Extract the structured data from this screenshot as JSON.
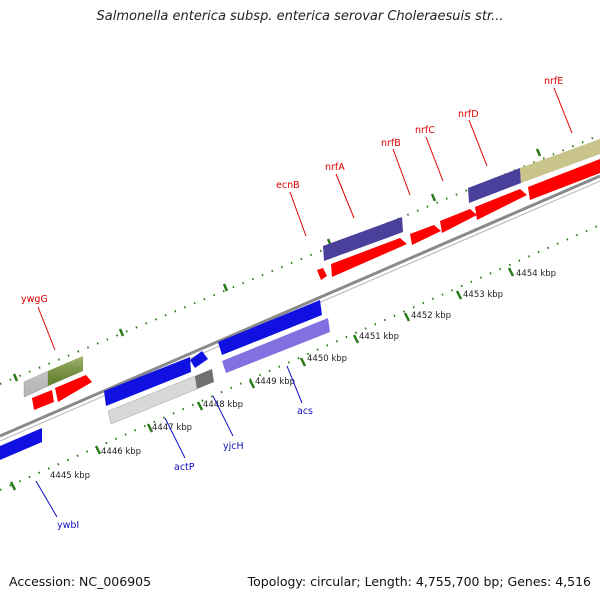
{
  "title": "Salmonella enterica subsp. enterica serovar Choleraesuis str...",
  "footer": {
    "accession": "Accession: NC_006905",
    "stats": "Topology: circular; Length: 4,755,700 bp; Genes: 4,516"
  },
  "colors": {
    "backbone": "#8a8a8a",
    "tick": "#2a7a1a",
    "label_forward": "#e00000",
    "label_reverse": "#1010c0",
    "red": "#ff0000",
    "blue": "#1010e0",
    "purple": "#8070e0",
    "dark_purple": "#4a3f9a",
    "olive": "#6b8e23",
    "khaki": "#c8c48a",
    "light_gray": "#d8d8d8",
    "dark_gray": "#707070"
  },
  "kbp_labels": [
    "4445 kbp",
    "4446 kbp",
    "4447 kbp",
    "4448 kbp",
    "4449 kbp",
    "4450 kbp",
    "4451 kbp",
    "4452 kbp",
    "4453 kbp",
    "4454 kbp"
  ],
  "gene_labels": {
    "forward": [
      "ywgG",
      "ecnB",
      "nrfA",
      "nrfB",
      "nrfC",
      "nrfD",
      "nrfE"
    ],
    "reverse": [
      "ywbI",
      "actP",
      "yjcH",
      "acs"
    ]
  }
}
